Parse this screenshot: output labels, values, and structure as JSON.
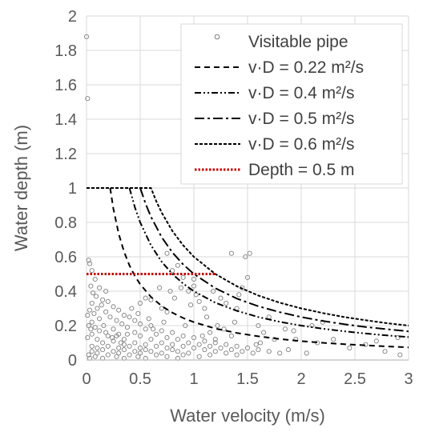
{
  "chart_data": {
    "type": "scatter",
    "title": "",
    "xlabel": "Water velocity (m/s)",
    "ylabel": "Water depth (m)",
    "xlim": [
      0,
      3
    ],
    "ylim": [
      0,
      2
    ],
    "x_ticks": [
      "0",
      "0.5",
      "1",
      "1.5",
      "2",
      "2.5",
      "3"
    ],
    "y_ticks": [
      "0",
      "0.2",
      "0.4",
      "0.6",
      "0.8",
      "1",
      "1.2",
      "1.4",
      "1.6",
      "1.8",
      "2"
    ],
    "grid": true,
    "legend_position": "top-right",
    "series": [
      {
        "name": "Visitable pipe",
        "kind": "scatter",
        "color": "#7f7f7f",
        "points": [
          [
            0.0,
            1.88
          ],
          [
            0.01,
            1.52
          ],
          [
            0.02,
            0.58
          ],
          [
            0.03,
            0.56
          ],
          [
            0.05,
            0.52
          ],
          [
            0.08,
            0.47
          ],
          [
            0.12,
            0.42
          ],
          [
            0.18,
            0.4
          ],
          [
            0.09,
            0.37
          ],
          [
            0.15,
            0.35
          ],
          [
            0.2,
            0.34
          ],
          [
            0.05,
            0.33
          ],
          [
            0.25,
            0.31
          ],
          [
            0.1,
            0.3
          ],
          [
            0.3,
            0.29
          ],
          [
            0.18,
            0.28
          ],
          [
            0.07,
            0.27
          ],
          [
            0.35,
            0.26
          ],
          [
            0.22,
            0.25
          ],
          [
            0.4,
            0.25
          ],
          [
            0.12,
            0.24
          ],
          [
            0.28,
            0.23
          ],
          [
            0.45,
            0.23
          ],
          [
            0.05,
            0.22
          ],
          [
            0.33,
            0.21
          ],
          [
            0.5,
            0.21
          ],
          [
            0.16,
            0.2
          ],
          [
            0.6,
            0.2
          ],
          [
            0.08,
            0.19
          ],
          [
            0.38,
            0.19
          ],
          [
            0.25,
            0.18
          ],
          [
            0.55,
            0.18
          ],
          [
            0.7,
            0.17
          ],
          [
            0.12,
            0.17
          ],
          [
            0.45,
            0.16
          ],
          [
            0.8,
            0.16
          ],
          [
            0.3,
            0.15
          ],
          [
            0.65,
            0.15
          ],
          [
            0.05,
            0.15
          ],
          [
            0.9,
            0.14
          ],
          [
            0.2,
            0.14
          ],
          [
            0.5,
            0.14
          ],
          [
            0.75,
            0.13
          ],
          [
            1.0,
            0.13
          ],
          [
            0.35,
            0.12
          ],
          [
            0.1,
            0.12
          ],
          [
            0.6,
            0.12
          ],
          [
            0.85,
            0.12
          ],
          [
            1.1,
            0.11
          ],
          [
            0.25,
            0.11
          ],
          [
            0.45,
            0.1
          ],
          [
            0.7,
            0.1
          ],
          [
            0.95,
            0.1
          ],
          [
            1.2,
            0.1
          ],
          [
            0.15,
            0.1
          ],
          [
            0.55,
            0.09
          ],
          [
            0.35,
            0.09
          ],
          [
            0.8,
            0.09
          ],
          [
            1.05,
            0.09
          ],
          [
            1.3,
            0.09
          ],
          [
            0.05,
            0.08
          ],
          [
            0.2,
            0.08
          ],
          [
            0.4,
            0.08
          ],
          [
            0.65,
            0.08
          ],
          [
            0.9,
            0.08
          ],
          [
            1.15,
            0.08
          ],
          [
            1.4,
            0.08
          ],
          [
            0.1,
            0.07
          ],
          [
            0.3,
            0.07
          ],
          [
            0.5,
            0.07
          ],
          [
            0.75,
            0.07
          ],
          [
            1.0,
            0.07
          ],
          [
            1.25,
            0.07
          ],
          [
            1.5,
            0.07
          ],
          [
            0.15,
            0.06
          ],
          [
            0.35,
            0.06
          ],
          [
            0.55,
            0.06
          ],
          [
            0.8,
            0.06
          ],
          [
            1.1,
            0.06
          ],
          [
            1.35,
            0.06
          ],
          [
            1.6,
            0.06
          ],
          [
            0.05,
            0.05
          ],
          [
            0.25,
            0.05
          ],
          [
            0.45,
            0.05
          ],
          [
            0.6,
            0.05
          ],
          [
            0.85,
            0.05
          ],
          [
            1.2,
            0.05
          ],
          [
            1.45,
            0.05
          ],
          [
            1.7,
            0.05
          ],
          [
            0.1,
            0.04
          ],
          [
            0.3,
            0.04
          ],
          [
            0.5,
            0.04
          ],
          [
            0.7,
            0.04
          ],
          [
            0.95,
            0.04
          ],
          [
            1.3,
            0.04
          ],
          [
            1.55,
            0.04
          ],
          [
            1.8,
            0.04
          ],
          [
            0.02,
            0.03
          ],
          [
            0.2,
            0.03
          ],
          [
            0.4,
            0.03
          ],
          [
            0.65,
            0.03
          ],
          [
            0.9,
            0.03
          ],
          [
            1.15,
            0.03
          ],
          [
            1.4,
            0.03
          ],
          [
            0.08,
            0.02
          ],
          [
            0.28,
            0.02
          ],
          [
            0.48,
            0.02
          ],
          [
            0.75,
            0.02
          ],
          [
            1.05,
            0.02
          ],
          [
            0.15,
            0.01
          ],
          [
            0.35,
            0.01
          ],
          [
            0.55,
            0.01
          ],
          [
            0.85,
            0.01
          ],
          [
            0.03,
            0.01
          ],
          [
            0.6,
            0.35
          ],
          [
            0.55,
            0.36
          ],
          [
            0.5,
            0.33
          ],
          [
            0.7,
            0.3
          ],
          [
            0.75,
            0.28
          ],
          [
            0.68,
            0.42
          ],
          [
            0.78,
            0.4
          ],
          [
            0.82,
            0.36
          ],
          [
            0.88,
            0.42
          ],
          [
            0.95,
            0.4
          ],
          [
            1.0,
            0.43
          ],
          [
            1.02,
            0.38
          ],
          [
            0.8,
            0.52
          ],
          [
            0.85,
            0.55
          ],
          [
            0.75,
            0.62
          ],
          [
            0.9,
            0.48
          ],
          [
            1.05,
            0.34
          ],
          [
            1.1,
            0.3
          ],
          [
            1.0,
            0.47
          ],
          [
            0.97,
            0.32
          ],
          [
            1.12,
            0.25
          ],
          [
            1.25,
            0.36
          ],
          [
            1.18,
            0.4
          ],
          [
            1.3,
            0.33
          ],
          [
            1.35,
            0.62
          ],
          [
            1.48,
            0.6
          ],
          [
            1.52,
            0.62
          ],
          [
            1.5,
            0.48
          ],
          [
            1.42,
            0.38
          ],
          [
            1.45,
            0.42
          ],
          [
            1.4,
            0.3
          ],
          [
            1.38,
            0.22
          ],
          [
            1.22,
            0.2
          ],
          [
            1.15,
            0.16
          ],
          [
            1.28,
            0.18
          ],
          [
            1.35,
            0.14
          ],
          [
            1.6,
            0.2
          ],
          [
            1.65,
            0.16
          ],
          [
            1.7,
            0.25
          ],
          [
            1.75,
            0.12
          ],
          [
            1.85,
            0.18
          ],
          [
            1.88,
            0.06
          ],
          [
            1.93,
            0.17
          ],
          [
            1.95,
            0.12
          ],
          [
            2.05,
            0.04
          ],
          [
            2.1,
            0.2
          ],
          [
            2.15,
            0.1
          ],
          [
            2.2,
            0.22
          ],
          [
            2.3,
            0.12
          ],
          [
            2.45,
            0.07
          ],
          [
            2.6,
            0.09
          ],
          [
            2.7,
            0.11
          ],
          [
            2.78,
            0.05
          ],
          [
            2.9,
            0.13
          ],
          [
            2.92,
            0.03
          ],
          [
            1.58,
            0.09
          ],
          [
            1.62,
            0.1
          ],
          [
            1.2,
            0.12
          ],
          [
            1.08,
            0.14
          ],
          [
            0.92,
            0.2
          ],
          [
            0.72,
            0.22
          ],
          [
            0.62,
            0.18
          ],
          [
            0.48,
            0.27
          ],
          [
            0.58,
            0.24
          ],
          [
            0.42,
            0.3
          ],
          [
            0.38,
            0.15
          ],
          [
            0.28,
            0.14
          ],
          [
            0.18,
            0.16
          ],
          [
            0.24,
            0.13
          ],
          [
            0.32,
            0.1
          ],
          [
            0.04,
            0.43
          ],
          [
            0.06,
            0.39
          ],
          [
            0.14,
            0.32
          ],
          [
            0.03,
            0.29
          ],
          [
            0.01,
            0.26
          ],
          [
            0.02,
            0.2
          ],
          [
            0.04,
            0.18
          ],
          [
            0.01,
            0.13
          ]
        ]
      },
      {
        "name": "v·D = 0.22 m²/s",
        "kind": "line",
        "dash": "7,5",
        "color": "#000000",
        "points": [
          [
            0.22,
            1.0
          ],
          [
            0.25,
            0.88
          ],
          [
            0.3,
            0.733
          ],
          [
            0.35,
            0.629
          ],
          [
            0.4,
            0.55
          ],
          [
            0.45,
            0.489
          ],
          [
            0.5,
            0.44
          ],
          [
            0.6,
            0.367
          ],
          [
            0.7,
            0.314
          ],
          [
            0.8,
            0.275
          ],
          [
            0.9,
            0.244
          ],
          [
            1.0,
            0.22
          ],
          [
            1.2,
            0.183
          ],
          [
            1.4,
            0.157
          ],
          [
            1.6,
            0.1375
          ],
          [
            1.8,
            0.122
          ],
          [
            2.0,
            0.11
          ],
          [
            2.2,
            0.1
          ],
          [
            2.4,
            0.092
          ],
          [
            2.6,
            0.085
          ],
          [
            2.8,
            0.079
          ],
          [
            3.0,
            0.0733
          ]
        ]
      },
      {
        "name": "v·D = 0.4 m²/s",
        "kind": "line",
        "dash": "8,3,2,3,2,3",
        "color": "#000000",
        "points": [
          [
            0.4,
            1.0
          ],
          [
            0.45,
            0.889
          ],
          [
            0.5,
            0.8
          ],
          [
            0.6,
            0.667
          ],
          [
            0.7,
            0.571
          ],
          [
            0.8,
            0.5
          ],
          [
            0.9,
            0.444
          ],
          [
            1.0,
            0.4
          ],
          [
            1.2,
            0.333
          ],
          [
            1.4,
            0.286
          ],
          [
            1.6,
            0.25
          ],
          [
            1.8,
            0.222
          ],
          [
            2.0,
            0.2
          ],
          [
            2.2,
            0.182
          ],
          [
            2.4,
            0.167
          ],
          [
            2.6,
            0.154
          ],
          [
            2.8,
            0.143
          ],
          [
            3.0,
            0.133
          ]
        ]
      },
      {
        "name": "v·D = 0.5 m²/s",
        "kind": "line",
        "dash": "12,4,3,4",
        "color": "#000000",
        "points": [
          [
            0.5,
            1.0
          ],
          [
            0.55,
            0.909
          ],
          [
            0.6,
            0.833
          ],
          [
            0.7,
            0.714
          ],
          [
            0.8,
            0.625
          ],
          [
            0.9,
            0.556
          ],
          [
            1.0,
            0.5
          ],
          [
            1.2,
            0.417
          ],
          [
            1.4,
            0.357
          ],
          [
            1.6,
            0.3125
          ],
          [
            1.8,
            0.278
          ],
          [
            2.0,
            0.25
          ],
          [
            2.2,
            0.227
          ],
          [
            2.4,
            0.208
          ],
          [
            2.6,
            0.192
          ],
          [
            2.8,
            0.179
          ],
          [
            3.0,
            0.1667
          ]
        ]
      },
      {
        "name": "v·D = 0.6 m²/s",
        "kind": "line",
        "dash": "4,2",
        "color": "#000000",
        "points": [
          [
            0.0,
            1.0
          ],
          [
            0.6,
            1.0
          ],
          [
            0.65,
            0.923
          ],
          [
            0.7,
            0.857
          ],
          [
            0.8,
            0.75
          ],
          [
            0.9,
            0.667
          ],
          [
            1.0,
            0.6
          ],
          [
            1.2,
            0.5
          ],
          [
            1.4,
            0.429
          ],
          [
            1.6,
            0.375
          ],
          [
            1.8,
            0.333
          ],
          [
            2.0,
            0.3
          ],
          [
            2.2,
            0.273
          ],
          [
            2.4,
            0.25
          ],
          [
            2.6,
            0.231
          ],
          [
            2.8,
            0.214
          ],
          [
            3.0,
            0.2
          ]
        ]
      },
      {
        "name": "Depth = 0.5 m",
        "kind": "line",
        "dash": "2.5,2",
        "color": "#c00000",
        "points": [
          [
            0.0,
            0.5
          ],
          [
            1.2,
            0.5
          ]
        ]
      }
    ]
  }
}
